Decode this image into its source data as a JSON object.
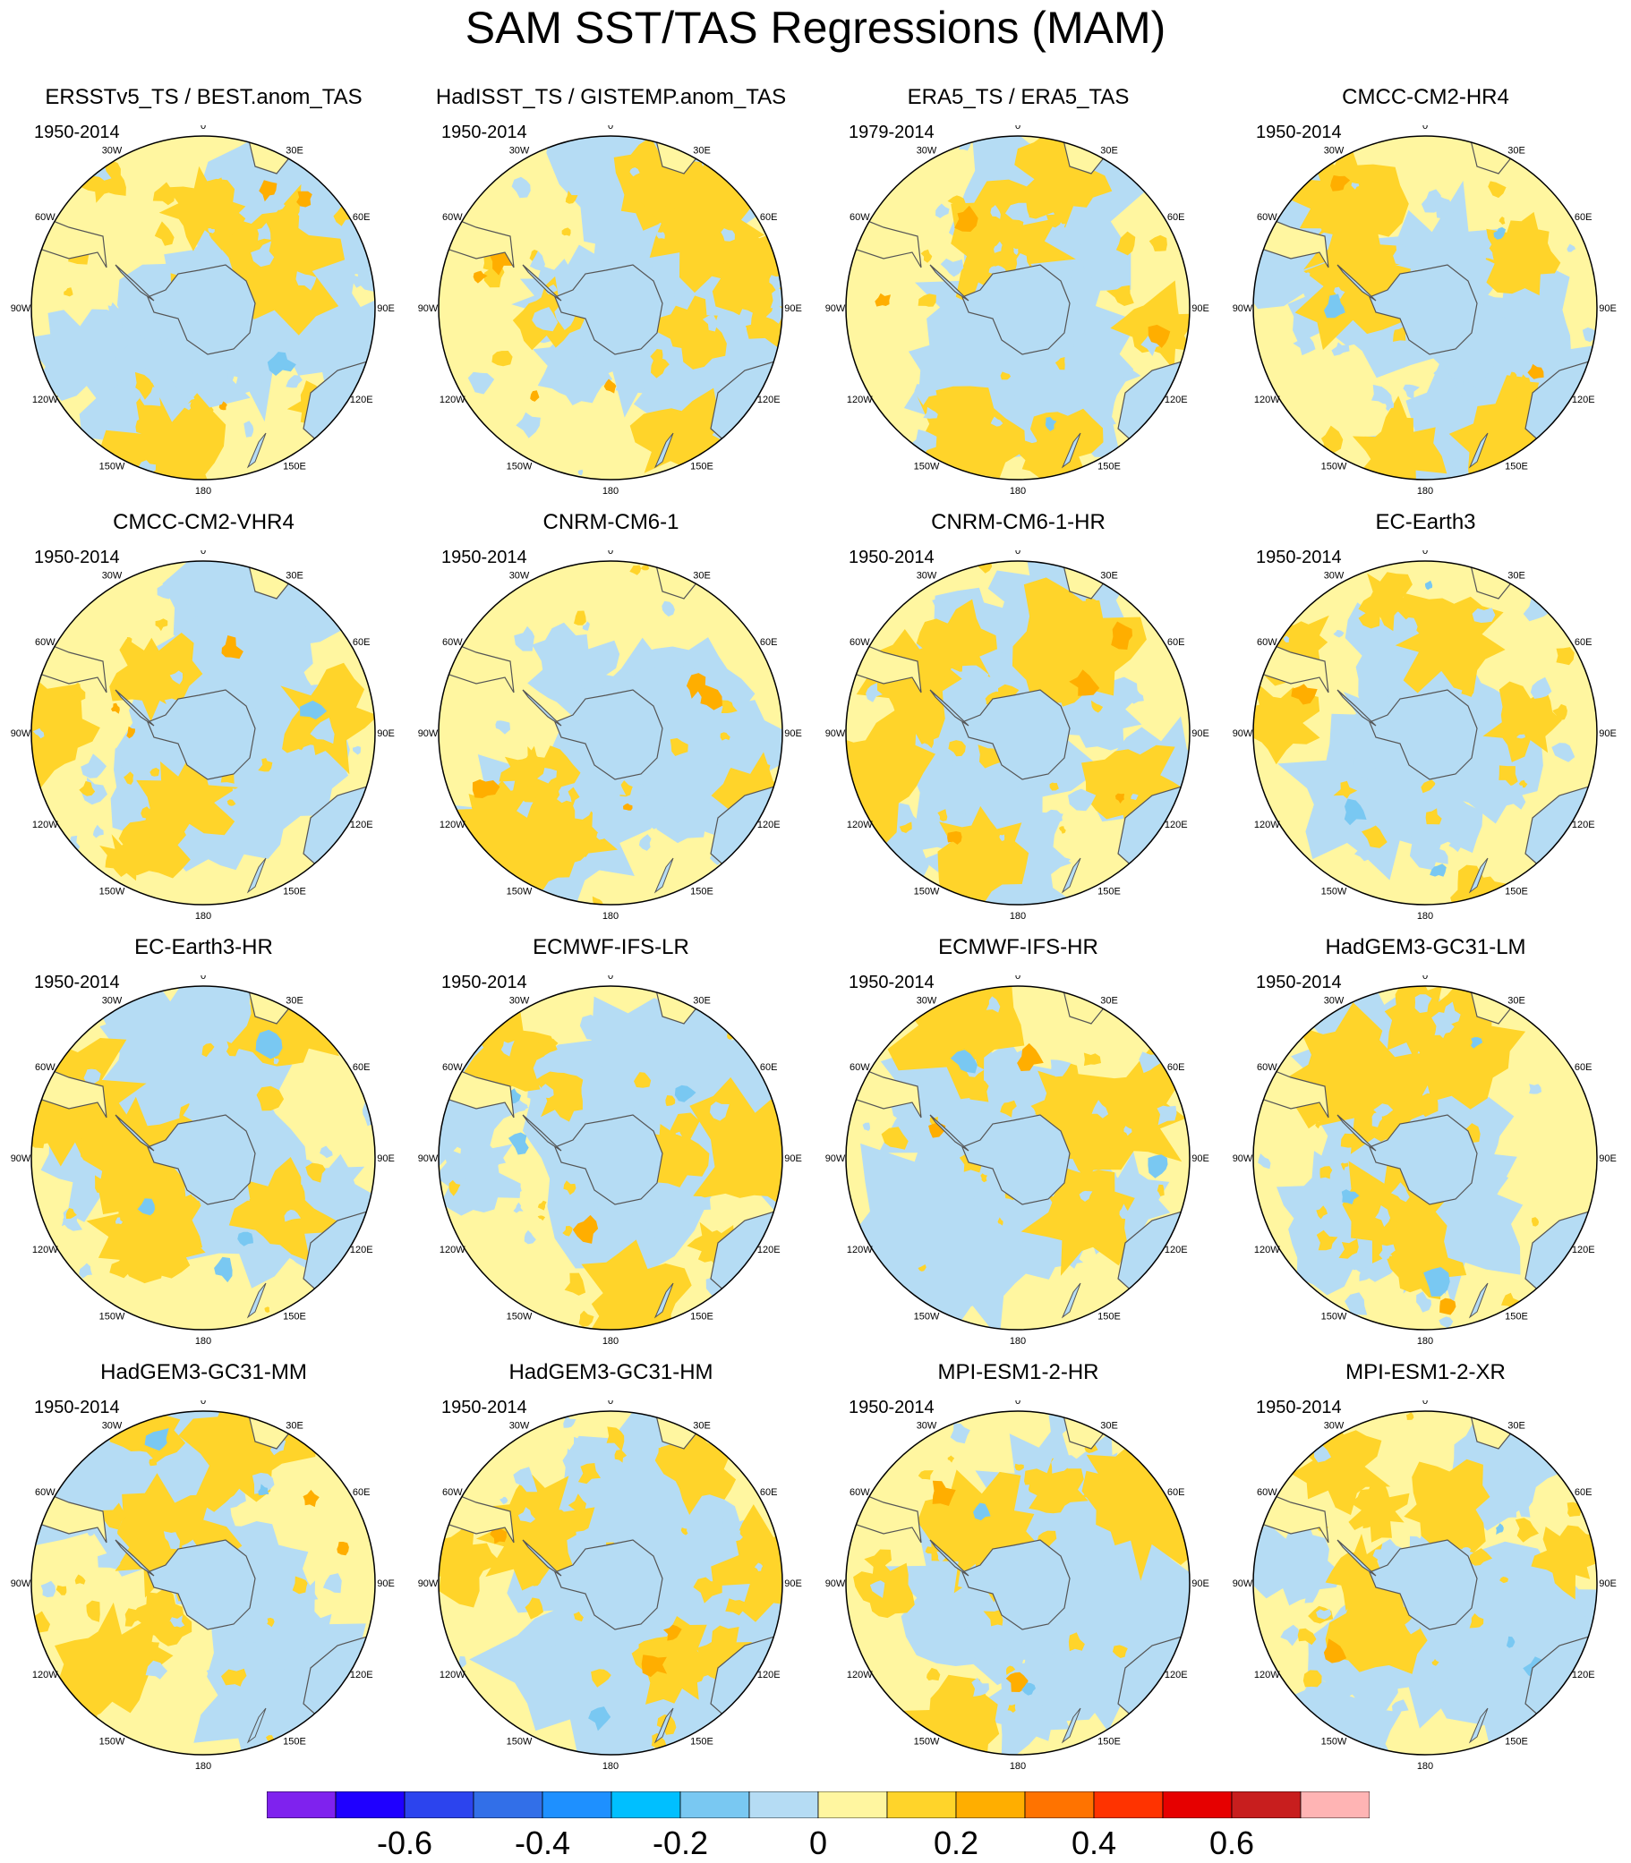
{
  "figure": {
    "title": "SAM SST/TAS Regressions (MAM)"
  },
  "chart_data": {
    "type": "polar contour map grid",
    "projection": "south polar stereographic",
    "lon_labels": [
      "0",
      "30E",
      "60E",
      "90E",
      "120E",
      "150E",
      "180",
      "150W",
      "120W",
      "90W",
      "60W",
      "30W"
    ],
    "panels": [
      {
        "title": "ERSSTv5_TS / BEST.anom_TAS",
        "period": "1950-2014"
      },
      {
        "title": "HadISST_TS / GISTEMP.anom_TAS",
        "period": "1950-2014"
      },
      {
        "title": "ERA5_TS / ERA5_TAS",
        "period": "1979-2014"
      },
      {
        "title": "CMCC-CM2-HR4",
        "period": "1950-2014"
      },
      {
        "title": "CMCC-CM2-VHR4",
        "period": "1950-2014"
      },
      {
        "title": "CNRM-CM6-1",
        "period": "1950-2014"
      },
      {
        "title": "CNRM-CM6-1-HR",
        "period": "1950-2014"
      },
      {
        "title": "EC-Earth3",
        "period": "1950-2014"
      },
      {
        "title": "EC-Earth3-HR",
        "period": "1950-2014"
      },
      {
        "title": "ECMWF-IFS-LR",
        "period": "1950-2014"
      },
      {
        "title": "ECMWF-IFS-HR",
        "period": "1950-2014"
      },
      {
        "title": "HadGEM3-GC31-LM",
        "period": "1950-2014"
      },
      {
        "title": "HadGEM3-GC31-MM",
        "period": "1950-2014"
      },
      {
        "title": "HadGEM3-GC31-HM",
        "period": "1950-2014"
      },
      {
        "title": "MPI-ESM1-2-HR",
        "period": "1950-2014"
      },
      {
        "title": "MPI-ESM1-2-XR",
        "period": "1950-2014"
      }
    ],
    "colorbar": {
      "colors": [
        "#7f22ee",
        "#1f00ff",
        "#2c44ee",
        "#326fe8",
        "#1e90ff",
        "#00bfff",
        "#79c8f2",
        "#b5dcf4",
        "#fff6a0",
        "#ffd42a",
        "#ffae00",
        "#ff7300",
        "#ff3300",
        "#e60000",
        "#c81e1e",
        "#ffb4b4"
      ],
      "tick_labels": [
        "-0.6",
        "-0.4",
        "-0.2",
        "0",
        "0.2",
        "0.4",
        "0.6"
      ],
      "tick_values": [
        -0.6,
        -0.4,
        -0.2,
        0,
        0.2,
        0.4,
        0.6
      ],
      "boundaries": [
        -0.7,
        -0.6,
        -0.5,
        -0.4,
        -0.3,
        -0.2,
        -0.1,
        0,
        0.1,
        0.2,
        0.3,
        0.4,
        0.5,
        0.6,
        0.7
      ]
    }
  }
}
